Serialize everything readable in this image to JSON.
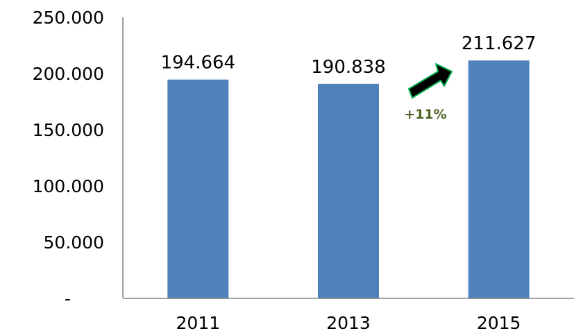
{
  "chart_data": {
    "type": "bar",
    "categories": [
      "2011",
      "2013",
      "2015"
    ],
    "values": [
      194664,
      190838,
      211627
    ],
    "data_labels": [
      "194.664",
      "190.838",
      "211.627"
    ],
    "ylim": [
      0,
      250000
    ],
    "yticks": [
      0,
      50000,
      100000,
      150000,
      200000,
      250000
    ],
    "ytick_labels": [
      "-",
      "50.000",
      "100.000",
      "150.000",
      "200.000",
      "250.000"
    ],
    "grid": false,
    "bar_color": "#4F81BD",
    "annotation": {
      "text": "+11%",
      "color": "#4F6228",
      "icon": "growth-arrow-icon",
      "arrow_color": "#000000",
      "arrow_outline_color": "#00B050"
    }
  }
}
